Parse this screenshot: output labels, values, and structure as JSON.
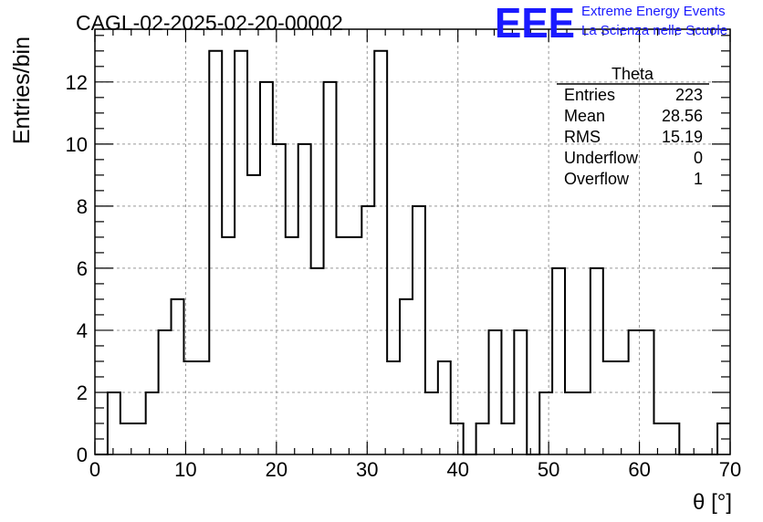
{
  "title": "CAGL-02-2025-02-20-00002",
  "logo": {
    "mark": "EEE",
    "line1": "Extreme Energy Events",
    "line2": "La Scienza nelle Scuole",
    "color": "#1a1aff"
  },
  "stats": {
    "name": "Theta",
    "rows": [
      {
        "label": "Entries",
        "value": "223"
      },
      {
        "label": "Mean",
        "value": "28.56"
      },
      {
        "label": "RMS",
        "value": "15.19"
      },
      {
        "label": "Underflow",
        "value": "0"
      },
      {
        "label": "Overflow",
        "value": "1"
      }
    ]
  },
  "chart_data": {
    "type": "histogram",
    "title": "CAGL-02-2025-02-20-00002",
    "xlabel": "θ [°]",
    "ylabel": "Entries/bin",
    "xlim": [
      0,
      70
    ],
    "ylim": [
      0,
      13.7
    ],
    "bin_width": 1.4,
    "xticks": [
      0,
      10,
      20,
      30,
      40,
      50,
      60,
      70
    ],
    "yticks": [
      0,
      2,
      4,
      6,
      8,
      10,
      12
    ],
    "grid": true,
    "values": [
      0,
      2,
      1,
      1,
      2,
      4,
      5,
      3,
      3,
      13,
      7,
      13,
      9,
      12,
      10,
      7,
      10,
      6,
      12,
      7,
      7,
      8,
      13,
      3,
      5,
      8,
      2,
      3,
      1,
      0,
      1,
      4,
      1,
      4,
      0,
      2,
      6,
      2,
      2,
      6,
      3,
      3,
      4,
      4,
      1,
      1,
      0,
      0,
      0,
      1
    ]
  }
}
